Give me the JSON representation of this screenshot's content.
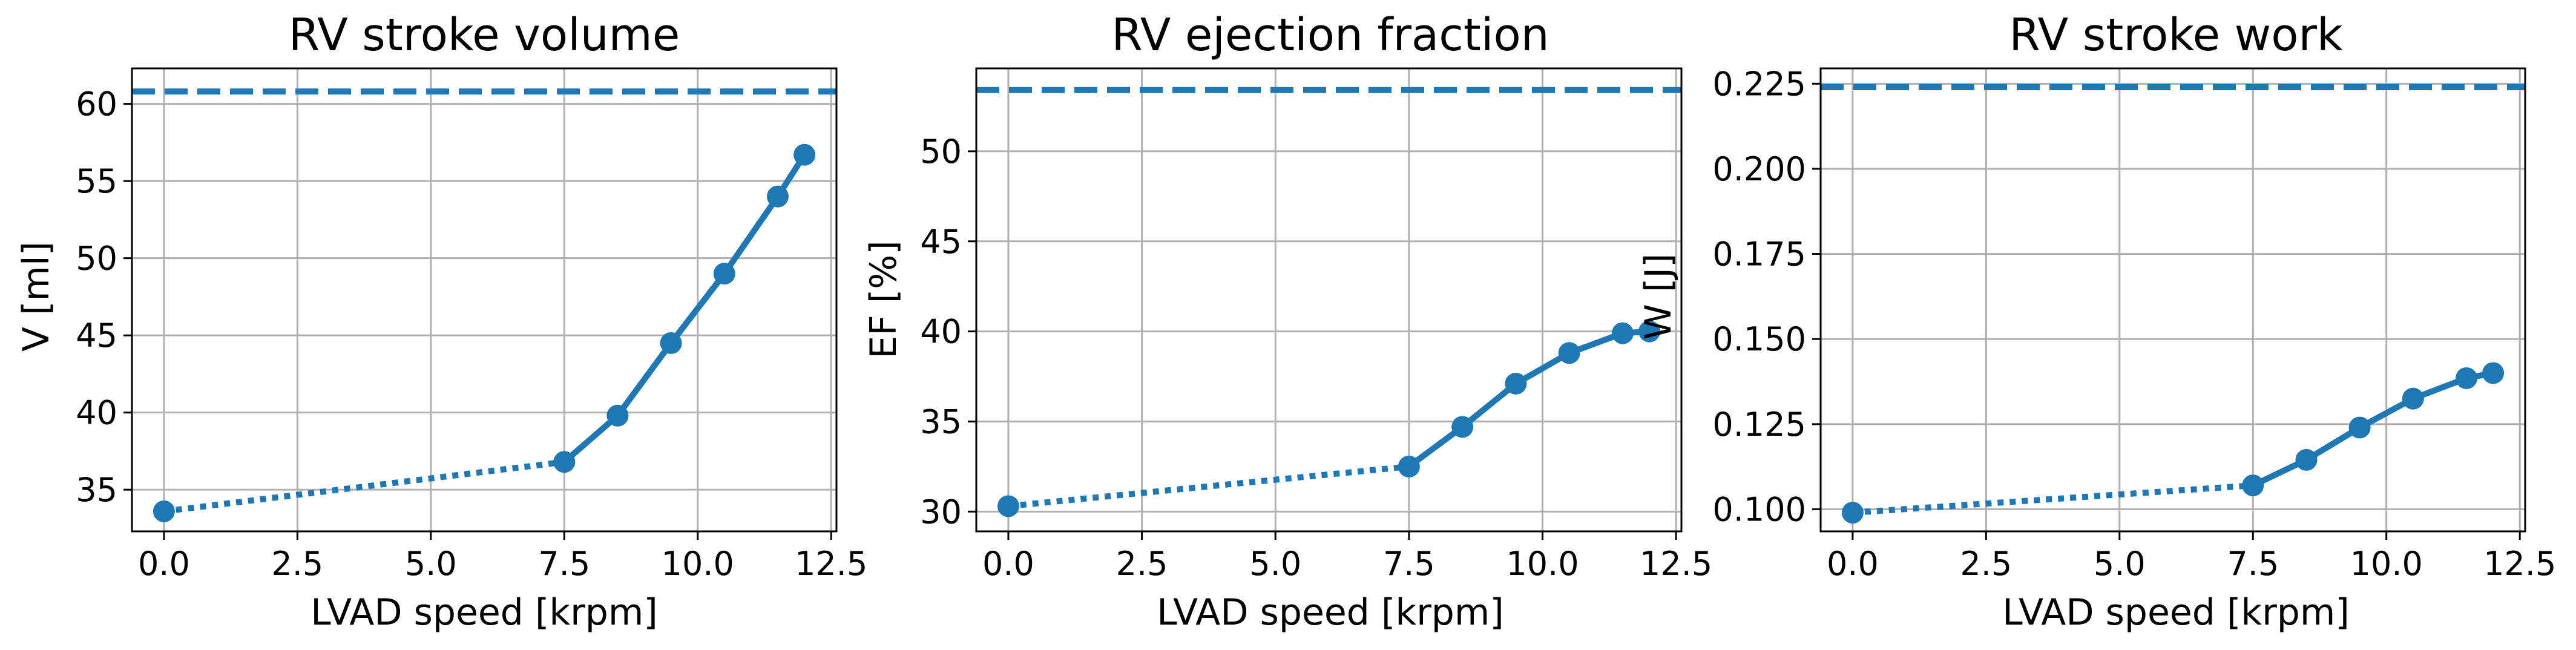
{
  "chart_data": [
    {
      "type": "line",
      "title": "RV stroke volume",
      "xlabel": "LVAD speed [krpm]",
      "ylabel": "V [ml]",
      "xlim": [
        -0.6,
        12.6
      ],
      "ylim": [
        32.3,
        62.3
      ],
      "xticks": [
        0.0,
        2.5,
        5.0,
        7.5,
        10.0,
        12.5
      ],
      "xtick_labels": [
        "0.0",
        "2.5",
        "5.0",
        "7.5",
        "10.0",
        "12.5"
      ],
      "yticks": [
        35,
        40,
        45,
        50,
        55,
        60
      ],
      "ytick_labels": [
        "35",
        "40",
        "45",
        "50",
        "55",
        "60"
      ],
      "grid": true,
      "color": "#1f77b4",
      "reference_line": 60.8,
      "x": [
        0.0,
        7.5,
        8.5,
        9.5,
        10.5,
        11.5,
        12.0
      ],
      "values": [
        33.6,
        36.8,
        39.8,
        44.5,
        49.0,
        54.0,
        56.7
      ]
    },
    {
      "type": "line",
      "title": "RV ejection fraction",
      "xlabel": "LVAD speed [krpm]",
      "ylabel": "EF [%]",
      "xlim": [
        -0.6,
        12.6
      ],
      "ylim": [
        28.9,
        54.6
      ],
      "xticks": [
        0.0,
        2.5,
        5.0,
        7.5,
        10.0,
        12.5
      ],
      "xtick_labels": [
        "0.0",
        "2.5",
        "5.0",
        "7.5",
        "10.0",
        "12.5"
      ],
      "yticks": [
        30,
        35,
        40,
        45,
        50
      ],
      "ytick_labels": [
        "30",
        "35",
        "40",
        "45",
        "50"
      ],
      "grid": true,
      "color": "#1f77b4",
      "reference_line": 53.4,
      "x": [
        0.0,
        7.5,
        8.5,
        9.5,
        10.5,
        11.5,
        12.0
      ],
      "values": [
        30.3,
        32.5,
        34.7,
        37.1,
        38.8,
        39.9,
        40.0
      ]
    },
    {
      "type": "line",
      "title": "RV stroke work",
      "xlabel": "LVAD speed [krpm]",
      "ylabel": "W [J]",
      "xlim": [
        -0.6,
        12.6
      ],
      "ylim": [
        0.0935,
        0.2295
      ],
      "xticks": [
        0.0,
        2.5,
        5.0,
        7.5,
        10.0,
        12.5
      ],
      "xtick_labels": [
        "0.0",
        "2.5",
        "5.0",
        "7.5",
        "10.0",
        "12.5"
      ],
      "yticks": [
        0.1,
        0.125,
        0.15,
        0.175,
        0.2,
        0.225
      ],
      "ytick_labels": [
        "0.100",
        "0.125",
        "0.150",
        "0.175",
        "0.200",
        "0.225"
      ],
      "grid": true,
      "color": "#1f77b4",
      "reference_line": 0.224,
      "x": [
        0.0,
        7.5,
        8.5,
        9.5,
        10.5,
        11.5,
        12.0
      ],
      "values": [
        0.099,
        0.107,
        0.1145,
        0.124,
        0.1325,
        0.1385,
        0.14
      ]
    }
  ]
}
